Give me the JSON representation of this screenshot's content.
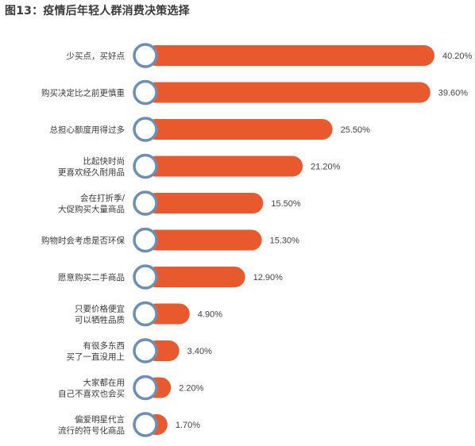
{
  "chart_data": {
    "type": "bar",
    "orientation": "horizontal",
    "title": "图13：疫情后年轻人群消费决策选择",
    "categories": [
      [
        "少买点，买好点"
      ],
      [
        "购买决定比之前更慎重"
      ],
      [
        "总担心额度用得过多"
      ],
      [
        "比起快时尚",
        "更喜欢经久耐用品"
      ],
      [
        "会在打折季/",
        "大促购买大量商品"
      ],
      [
        "购物时会考虑是否环保"
      ],
      [
        "愿意购买二手商品"
      ],
      [
        "只要价格便宜",
        "可以牺牲品质"
      ],
      [
        "有很多东西",
        "买了一直没用上"
      ],
      [
        "大家都在用",
        "自己不喜欢也会买"
      ],
      [
        "偏爱明星代言",
        "流行的符号化商品"
      ]
    ],
    "values": [
      40.2,
      39.6,
      25.5,
      21.2,
      15.5,
      15.3,
      12.9,
      4.9,
      3.4,
      2.2,
      1.7
    ],
    "value_labels": [
      "40.20%",
      "39.60%",
      "25.50%",
      "21.20%",
      "15.50%",
      "15.30%",
      "12.90%",
      "4.90%",
      "3.40%",
      "2.20%",
      "1.70%"
    ],
    "unit": "%",
    "xlim": [
      0,
      40.2
    ],
    "grid": false,
    "legend": "none",
    "colors": {
      "bar": "#e85a2e",
      "marker_ring": "#6d8fb5",
      "marker_fill": "#ffffff",
      "text": "#3a3a3a"
    }
  }
}
